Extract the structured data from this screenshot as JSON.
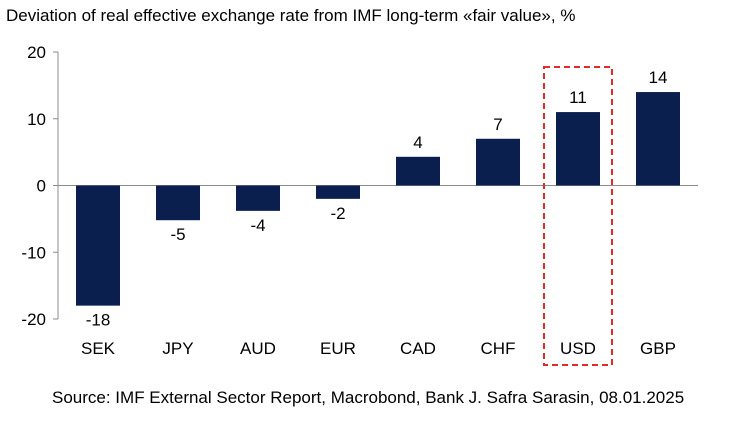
{
  "chart_data": {
    "type": "bar",
    "title": "Deviation of real effective exchange rate from IMF long-term «fair value», %",
    "categories": [
      "SEK",
      "JPY",
      "AUD",
      "EUR",
      "CAD",
      "CHF",
      "USD",
      "GBP"
    ],
    "values": [
      -18,
      -5.2,
      -3.8,
      -2,
      4.3,
      7,
      11,
      14
    ],
    "data_labels": [
      "-18",
      "-5",
      "-4",
      "-2",
      "4",
      "7",
      "11",
      "14"
    ],
    "ylim": [
      -20,
      20
    ],
    "yticks": [
      20,
      10,
      0,
      -10,
      -20
    ],
    "xlabel": "",
    "ylabel": "",
    "grid": false,
    "legend": "none",
    "highlight_category": "USD",
    "bar_color": "#0b1f4f",
    "highlight_color": "#e32b2b"
  },
  "source": "Source: IMF External Sector Report, Macrobond, Bank J. Safra Sarasin, 08.01.2025"
}
